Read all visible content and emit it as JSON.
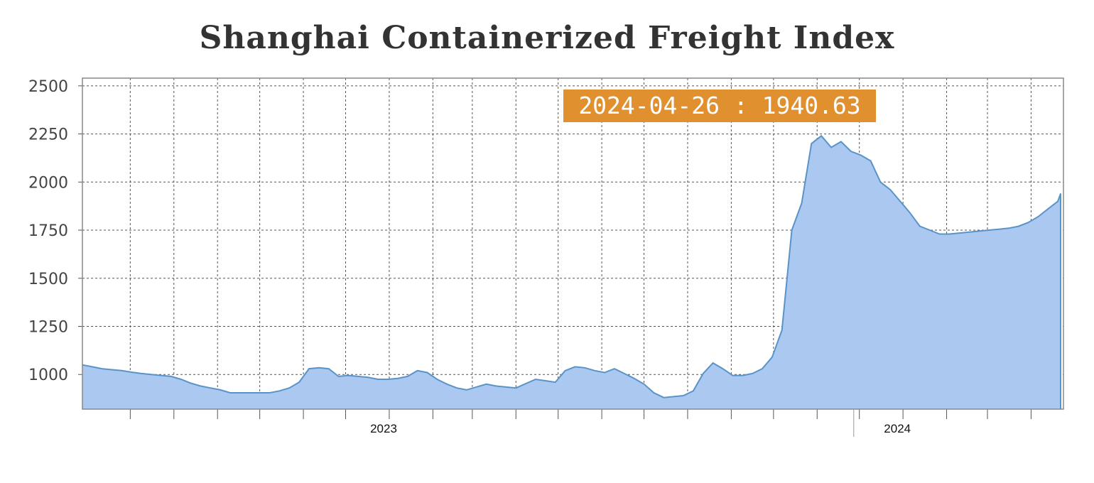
{
  "chart_data": {
    "type": "area",
    "title": "Shanghai Containerized Freight Index",
    "xlabel": "",
    "ylabel": "",
    "ylim": [
      820,
      2540
    ],
    "yticks": [
      1000,
      1250,
      1500,
      1750,
      2000,
      2250,
      2500
    ],
    "ytick_labels": [
      "1000",
      "1250",
      "1500",
      "1750",
      "2000",
      "2250",
      "2500"
    ],
    "x_year_labels": [
      {
        "label": "2023",
        "date": "2023-01-01"
      },
      {
        "label": "2024",
        "date": "2024-01-01"
      }
    ],
    "x_range": [
      "2022-06-01",
      "2024-04-28"
    ],
    "grid": true,
    "fill_color": "#aac8f0",
    "line_color": "#5a93c8",
    "tooltip": {
      "date": "2024-04-26",
      "value": 1940.63,
      "text": "2024-04-26 : 1940.63",
      "color": "#e0902f"
    },
    "series": [
      {
        "dates": [
          "2022-06-01",
          "2022-06-08",
          "2022-06-15",
          "2022-06-22",
          "2022-06-29",
          "2022-07-06",
          "2022-07-13",
          "2022-07-20",
          "2022-07-27",
          "2022-08-03",
          "2022-08-10",
          "2022-08-17",
          "2022-08-24",
          "2022-08-31",
          "2022-09-07",
          "2022-09-14",
          "2022-09-21",
          "2022-09-28",
          "2022-10-05",
          "2022-10-12",
          "2022-10-19",
          "2022-10-26",
          "2022-11-02",
          "2022-11-09",
          "2022-11-16",
          "2022-11-23",
          "2022-11-30",
          "2022-12-07",
          "2022-12-14",
          "2022-12-21",
          "2022-12-28",
          "2023-01-04",
          "2023-01-11",
          "2023-01-18",
          "2023-01-25",
          "2023-02-01",
          "2023-02-08",
          "2023-02-15",
          "2023-02-22",
          "2023-03-01",
          "2023-03-08",
          "2023-03-15",
          "2023-03-22",
          "2023-04-05",
          "2023-04-19",
          "2023-05-03",
          "2023-05-10",
          "2023-05-17",
          "2023-05-24",
          "2023-05-31",
          "2023-06-07",
          "2023-06-14",
          "2023-06-21",
          "2023-06-28",
          "2023-07-05",
          "2023-07-12",
          "2023-07-19",
          "2023-07-26",
          "2023-08-02",
          "2023-08-09",
          "2023-08-16",
          "2023-08-23",
          "2023-08-30",
          "2023-09-06",
          "2023-09-13",
          "2023-09-20",
          "2023-09-27",
          "2023-10-04",
          "2023-10-11",
          "2023-10-18",
          "2023-10-25",
          "2023-11-01",
          "2023-11-08",
          "2023-11-15",
          "2023-11-22",
          "2023-11-29",
          "2023-12-06",
          "2023-12-13",
          "2023-12-20",
          "2023-12-27",
          "2024-01-03",
          "2024-01-10",
          "2024-01-17",
          "2024-01-24",
          "2024-01-31",
          "2024-02-07",
          "2024-02-14",
          "2024-02-21",
          "2024-02-28",
          "2024-03-06",
          "2024-03-13",
          "2024-03-20",
          "2024-03-27",
          "2024-04-03",
          "2024-04-10",
          "2024-04-17",
          "2024-04-24",
          "2024-04-26"
        ],
        "values": [
          1050,
          1040,
          1030,
          1025,
          1020,
          1012,
          1005,
          1000,
          995,
          990,
          975,
          955,
          940,
          930,
          920,
          905,
          905,
          905,
          905,
          905,
          915,
          930,
          960,
          1030,
          1035,
          1030,
          990,
          995,
          990,
          985,
          975,
          975,
          980,
          990,
          1020,
          1010,
          975,
          950,
          930,
          920,
          935,
          950,
          940,
          930,
          975,
          960,
          1020,
          1040,
          1035,
          1020,
          1010,
          1030,
          1005,
          980,
          950,
          905,
          880,
          885,
          890,
          915,
          1005,
          1060,
          1030,
          995,
          995,
          1005,
          1030,
          1090,
          1230,
          1750,
          1890,
          2200,
          2240,
          2180,
          2210,
          2160,
          2140,
          2110,
          2000,
          1960,
          1900,
          1840,
          1770,
          1750,
          1730,
          1730,
          1735,
          1740,
          1745,
          1750,
          1755,
          1760,
          1770,
          1790,
          1820,
          1860,
          1900,
          1940.63
        ]
      }
    ]
  }
}
